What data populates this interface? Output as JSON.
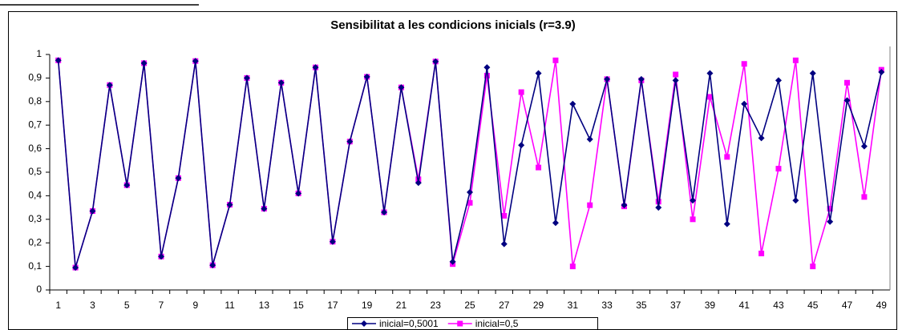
{
  "chart_data": {
    "type": "line",
    "title": "Sensibilitat a les condicions inicials (r=3.9)",
    "categories": [
      1,
      null,
      3,
      null,
      5,
      null,
      7,
      null,
      9,
      null,
      11,
      null,
      13,
      null,
      15,
      null,
      17,
      null,
      19,
      null,
      21,
      null,
      23,
      null,
      25,
      null,
      27,
      null,
      29,
      null,
      31,
      null,
      33,
      null,
      35,
      null,
      37,
      null,
      39,
      null,
      41,
      null,
      43,
      null,
      45,
      null,
      47,
      null,
      49
    ],
    "series": [
      {
        "name": "inicial=0,5001",
        "color": "#000080",
        "marker": "diamond",
        "values": [
          0.975,
          0.095,
          0.335,
          0.87,
          0.445,
          0.963,
          0.142,
          0.475,
          0.972,
          0.105,
          0.362,
          0.9,
          0.345,
          0.88,
          0.41,
          0.945,
          0.205,
          0.63,
          0.905,
          0.33,
          0.86,
          0.455,
          0.97,
          0.12,
          0.415,
          0.945,
          0.195,
          0.615,
          0.92,
          0.285,
          0.79,
          0.64,
          0.895,
          0.36,
          0.895,
          0.35,
          0.89,
          0.38,
          0.92,
          0.28,
          0.79,
          0.645,
          0.89,
          0.38,
          0.92,
          0.29,
          0.805,
          0.61,
          0.925
        ]
      },
      {
        "name": "inicial=0,5",
        "color": "#ff00ff",
        "marker": "square",
        "values": [
          0.975,
          0.095,
          0.335,
          0.87,
          0.445,
          0.963,
          0.142,
          0.475,
          0.972,
          0.105,
          0.362,
          0.9,
          0.345,
          0.88,
          0.41,
          0.945,
          0.205,
          0.63,
          0.905,
          0.33,
          0.86,
          0.47,
          0.97,
          0.11,
          0.37,
          0.91,
          0.315,
          0.84,
          0.52,
          0.975,
          0.1,
          0.36,
          0.895,
          0.355,
          0.89,
          0.375,
          0.915,
          0.3,
          0.82,
          0.565,
          0.96,
          0.155,
          0.515,
          0.975,
          0.1,
          0.345,
          0.88,
          0.395,
          0.935
        ]
      }
    ],
    "ylim": [
      0,
      1
    ],
    "yticks": [
      0,
      {
        "value": 0.1,
        "label": "0,1"
      },
      {
        "value": 0.2,
        "label": "0,2"
      },
      {
        "value": 0.3,
        "label": "0,3"
      },
      {
        "value": 0.4,
        "label": "0,4"
      },
      {
        "value": 0.5,
        "label": "0,5"
      },
      {
        "value": 0.6,
        "label": "0,6"
      },
      {
        "value": 0.7,
        "label": "0,7"
      },
      {
        "value": 0.8,
        "label": "0,8"
      },
      {
        "value": 0.9,
        "label": "0,9"
      },
      1
    ],
    "grid": false,
    "legend": "bottom"
  }
}
